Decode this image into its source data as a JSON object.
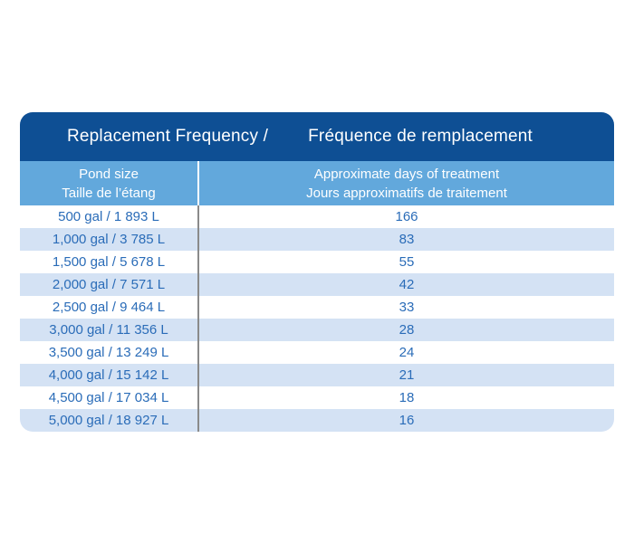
{
  "table": {
    "title_en": "Replacement Frequency /",
    "title_fr": "Fréquence de remplacement",
    "columns": [
      {
        "header_en": "Pond size",
        "header_fr": "Taille de l’étang"
      },
      {
        "header_en": "Approximate days of treatment",
        "header_fr": "Jours approximatifs de traitement"
      }
    ],
    "rows": [
      {
        "pond_size": "500 gal / 1 893 L",
        "days": "166"
      },
      {
        "pond_size": "1,000 gal / 3 785 L",
        "days": "83"
      },
      {
        "pond_size": "1,500 gal / 5 678 L",
        "days": "55"
      },
      {
        "pond_size": "2,000 gal / 7 571 L",
        "days": "42"
      },
      {
        "pond_size": "2,500 gal / 9 464 L",
        "days": "33"
      },
      {
        "pond_size": "3,000 gal / 11 356 L",
        "days": "28"
      },
      {
        "pond_size": "3,500 gal / 13 249 L",
        "days": "24"
      },
      {
        "pond_size": "4,000 gal / 15 142 L",
        "days": "21"
      },
      {
        "pond_size": "4,500 gal / 17 034 L",
        "days": "18"
      },
      {
        "pond_size": "5,000 gal / 18 927 L",
        "days": "16"
      }
    ]
  },
  "colors": {
    "header_bg": "#0E4F94",
    "header_text": "#FFFFFF",
    "subheader_bg": "#62A8DC",
    "row_bg": "#FFFFFF",
    "row_alt_bg": "#D4E2F4",
    "row_text": "#2A6CB8",
    "divider_gray": "#8A8A8A",
    "divider_white": "#FFFFFF"
  },
  "chart_data": {
    "type": "table",
    "title": "Replacement Frequency / Fréquence de remplacement",
    "columns": [
      "Pond size / Taille de l’étang",
      "Approximate days of treatment / Jours approximatifs de traitement"
    ],
    "rows": [
      [
        "500 gal / 1 893 L",
        166
      ],
      [
        "1,000 gal / 3 785 L",
        83
      ],
      [
        "1,500 gal / 5 678 L",
        55
      ],
      [
        "2,000 gal / 7 571 L",
        42
      ],
      [
        "2,500 gal / 9 464 L",
        33
      ],
      [
        "3,000 gal / 11 356 L",
        28
      ],
      [
        "3,500 gal / 13 249 L",
        24
      ],
      [
        "4,000 gal / 15 142 L",
        21
      ],
      [
        "4,500 gal / 17 034 L",
        18
      ],
      [
        "5,000 gal / 18 927 L",
        16
      ]
    ],
    "layout": {
      "header_rows": 2,
      "alternating_row_shading": true,
      "column_divider": true
    }
  }
}
